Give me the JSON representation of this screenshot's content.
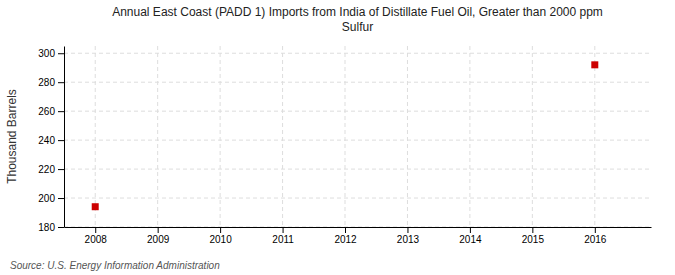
{
  "chart_data": {
    "type": "scatter",
    "title": "Annual East Coast (PADD 1) Imports from India of Distillate Fuel Oil, Greater than 2000 ppm\nSulfur",
    "ylabel": "Thousand Barrels",
    "source": "Source: U.S. Energy Information Administration",
    "x": [
      2008,
      2016
    ],
    "values": [
      194,
      292
    ],
    "color": "#cc0000",
    "marker": "square",
    "xlim": [
      2007.5,
      2016.9
    ],
    "ylim": [
      180,
      305
    ],
    "xticks": [
      2008,
      2009,
      2010,
      2011,
      2012,
      2013,
      2014,
      2015,
      2016
    ],
    "yticks": [
      180,
      200,
      220,
      240,
      260,
      280,
      300
    ],
    "grid": true
  }
}
